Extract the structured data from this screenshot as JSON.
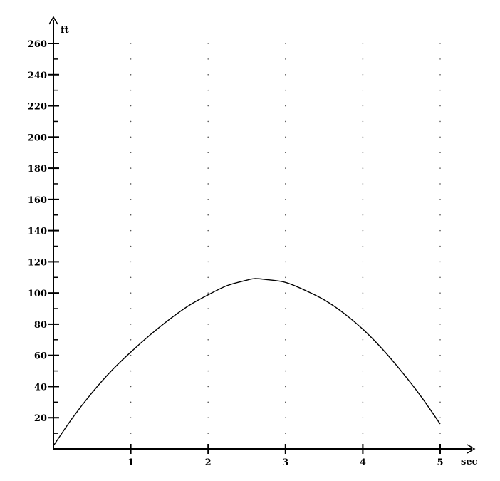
{
  "chart_data": {
    "type": "line",
    "title": "",
    "xlabel": "sec",
    "ylabel": "ft",
    "xlim": [
      0,
      5
    ],
    "ylim": [
      0,
      260
    ],
    "x_ticks": [
      1,
      2,
      3,
      4,
      5
    ],
    "y_ticks": [
      20,
      40,
      60,
      80,
      100,
      120,
      140,
      160,
      180,
      200,
      220,
      240,
      260
    ],
    "y_minor_step": 10,
    "grid": "dotted",
    "series": [
      {
        "color": "#000000",
        "x": [
          0,
          0.25,
          0.5,
          0.75,
          1.0,
          1.25,
          1.5,
          1.75,
          2.0,
          2.25,
          2.5,
          2.6,
          2.75,
          3.0,
          3.25,
          3.5,
          3.75,
          4.0,
          4.25,
          4.5,
          4.75,
          5.0
        ],
        "y": [
          2,
          20.1,
          36.1,
          50.1,
          62.1,
          73.1,
          83.1,
          91.9,
          98.8,
          104.8,
          108.2,
          109.2,
          108.6,
          106.8,
          101.8,
          95.6,
          87.2,
          76.8,
          64.2,
          49.7,
          33.8,
          16.0
        ]
      }
    ]
  }
}
